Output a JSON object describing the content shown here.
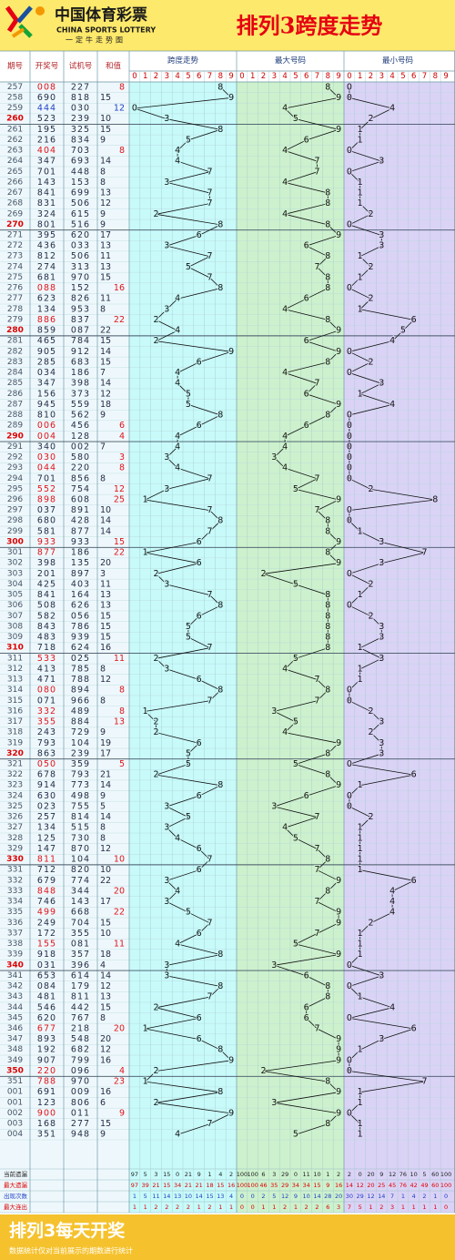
{
  "header": {
    "logo": "中国体育彩票",
    "logo_en": "CHINA SPORTS LOTTERY",
    "logo_sub": "一定牛走势图",
    "title": "排列3跨度走势"
  },
  "columns": [
    "期号",
    "开奖号",
    "试机号",
    "和值"
  ],
  "sections": [
    "跨度走势",
    "最大号码",
    "最小号码"
  ],
  "digits": [
    0,
    1,
    2,
    3,
    4,
    5,
    6,
    7,
    8,
    9
  ],
  "rows": [
    [
      "257",
      "008",
      "227",
      8,
      8,
      8,
      0
    ],
    [
      "258",
      "690",
      "818",
      15,
      9,
      9,
      0
    ],
    [
      "259",
      "444",
      "030",
      12,
      0,
      4,
      4
    ],
    [
      "260",
      "523",
      "239",
      10,
      3,
      5,
      2
    ],
    [
      "261",
      "195",
      "325",
      15,
      8,
      9,
      1
    ],
    [
      "262",
      "216",
      "834",
      9,
      5,
      6,
      1
    ],
    [
      "263",
      "404",
      "703",
      8,
      4,
      4,
      0
    ],
    [
      "264",
      "347",
      "693",
      14,
      4,
      7,
      3
    ],
    [
      "265",
      "701",
      "448",
      8,
      7,
      7,
      0
    ],
    [
      "266",
      "143",
      "153",
      8,
      3,
      4,
      1
    ],
    [
      "267",
      "841",
      "699",
      13,
      7,
      8,
      1
    ],
    [
      "268",
      "831",
      "506",
      12,
      7,
      8,
      1
    ],
    [
      "269",
      "324",
      "615",
      9,
      2,
      4,
      2
    ],
    [
      "270",
      "801",
      "516",
      9,
      8,
      8,
      0
    ],
    [
      "271",
      "395",
      "620",
      17,
      6,
      9,
      3
    ],
    [
      "272",
      "436",
      "033",
      13,
      3,
      6,
      3
    ],
    [
      "273",
      "812",
      "506",
      11,
      7,
      8,
      1
    ],
    [
      "274",
      "274",
      "313",
      13,
      5,
      7,
      2
    ],
    [
      "275",
      "681",
      "970",
      15,
      7,
      8,
      1
    ],
    [
      "276",
      "088",
      "152",
      16,
      8,
      8,
      0
    ],
    [
      "277",
      "623",
      "826",
      11,
      4,
      6,
      2
    ],
    [
      "278",
      "134",
      "953",
      8,
      3,
      4,
      1
    ],
    [
      "279",
      "886",
      "837",
      22,
      2,
      8,
      6
    ],
    [
      "280",
      "859",
      "087",
      22,
      4,
      9,
      5
    ],
    [
      "281",
      "465",
      "784",
      15,
      2,
      6,
      4
    ],
    [
      "282",
      "905",
      "912",
      14,
      9,
      9,
      0
    ],
    [
      "283",
      "285",
      "683",
      15,
      6,
      8,
      2
    ],
    [
      "284",
      "034",
      "186",
      7,
      4,
      4,
      0
    ],
    [
      "285",
      "347",
      "398",
      14,
      4,
      7,
      3
    ],
    [
      "286",
      "156",
      "373",
      12,
      5,
      6,
      1
    ],
    [
      "287",
      "945",
      "559",
      18,
      5,
      9,
      4
    ],
    [
      "288",
      "810",
      "562",
      9,
      8,
      8,
      0
    ],
    [
      "289",
      "006",
      "456",
      6,
      6,
      6,
      0
    ],
    [
      "290",
      "004",
      "128",
      4,
      4,
      4,
      0
    ],
    [
      "291",
      "340",
      "002",
      7,
      4,
      4,
      0
    ],
    [
      "292",
      "030",
      "580",
      3,
      3,
      3,
      0
    ],
    [
      "293",
      "044",
      "220",
      8,
      4,
      4,
      0
    ],
    [
      "294",
      "701",
      "856",
      8,
      7,
      7,
      0
    ],
    [
      "295",
      "552",
      "754",
      12,
      3,
      5,
      2
    ],
    [
      "296",
      "898",
      "608",
      25,
      1,
      9,
      8
    ],
    [
      "297",
      "037",
      "891",
      10,
      7,
      7,
      0
    ],
    [
      "298",
      "680",
      "428",
      14,
      8,
      8,
      0
    ],
    [
      "299",
      "581",
      "877",
      14,
      7,
      8,
      1
    ],
    [
      "300",
      "933",
      "933",
      15,
      6,
      9,
      3
    ],
    [
      "301",
      "877",
      "186",
      22,
      1,
      8,
      7
    ],
    [
      "302",
      "398",
      "135",
      20,
      6,
      9,
      3
    ],
    [
      "303",
      "201",
      "897",
      3,
      2,
      2,
      0
    ],
    [
      "304",
      "425",
      "403",
      11,
      3,
      5,
      2
    ],
    [
      "305",
      "841",
      "164",
      13,
      7,
      8,
      1
    ],
    [
      "306",
      "508",
      "626",
      13,
      8,
      8,
      0
    ],
    [
      "307",
      "582",
      "056",
      15,
      6,
      8,
      2
    ],
    [
      "308",
      "843",
      "786",
      15,
      5,
      8,
      3
    ],
    [
      "309",
      "483",
      "939",
      15,
      5,
      8,
      3
    ],
    [
      "310",
      "718",
      "624",
      16,
      7,
      8,
      1
    ],
    [
      "311",
      "533",
      "025",
      11,
      2,
      5,
      3
    ],
    [
      "312",
      "413",
      "785",
      8,
      3,
      4,
      1
    ],
    [
      "313",
      "471",
      "788",
      12,
      6,
      7,
      1
    ],
    [
      "314",
      "080",
      "894",
      8,
      8,
      8,
      0
    ],
    [
      "315",
      "071",
      "966",
      8,
      7,
      7,
      0
    ],
    [
      "316",
      "332",
      "489",
      8,
      1,
      3,
      2
    ],
    [
      "317",
      "355",
      "884",
      13,
      2,
      5,
      3
    ],
    [
      "318",
      "243",
      "729",
      9,
      2,
      4,
      2
    ],
    [
      "319",
      "793",
      "104",
      19,
      6,
      9,
      3
    ],
    [
      "320",
      "863",
      "239",
      17,
      5,
      8,
      3
    ],
    [
      "321",
      "050",
      "359",
      5,
      5,
      5,
      0
    ],
    [
      "322",
      "678",
      "793",
      21,
      2,
      8,
      6
    ],
    [
      "323",
      "914",
      "773",
      14,
      8,
      9,
      1
    ],
    [
      "324",
      "630",
      "498",
      9,
      6,
      6,
      0
    ],
    [
      "325",
      "023",
      "755",
      5,
      3,
      3,
      0
    ],
    [
      "326",
      "257",
      "814",
      14,
      5,
      7,
      2
    ],
    [
      "327",
      "134",
      "515",
      8,
      3,
      4,
      1
    ],
    [
      "328",
      "125",
      "730",
      8,
      4,
      5,
      1
    ],
    [
      "329",
      "147",
      "870",
      12,
      6,
      7,
      1
    ],
    [
      "330",
      "811",
      "104",
      10,
      7,
      8,
      1
    ],
    [
      "331",
      "712",
      "820",
      10,
      6,
      7,
      1
    ],
    [
      "332",
      "679",
      "774",
      22,
      3,
      9,
      6
    ],
    [
      "333",
      "848",
      "344",
      20,
      4,
      8,
      4
    ],
    [
      "334",
      "746",
      "143",
      17,
      3,
      7,
      4
    ],
    [
      "335",
      "499",
      "668",
      22,
      5,
      9,
      4
    ],
    [
      "336",
      "249",
      "704",
      15,
      7,
      9,
      2
    ],
    [
      "337",
      "172",
      "355",
      10,
      6,
      7,
      1
    ],
    [
      "338",
      "155",
      "081",
      11,
      4,
      5,
      1
    ],
    [
      "339",
      "918",
      "357",
      18,
      8,
      9,
      1
    ],
    [
      "340",
      "031",
      "396",
      4,
      3,
      3,
      0
    ],
    [
      "341",
      "653",
      "614",
      14,
      3,
      6,
      3
    ],
    [
      "342",
      "084",
      "179",
      12,
      8,
      8,
      0
    ],
    [
      "343",
      "481",
      "811",
      13,
      7,
      8,
      1
    ],
    [
      "344",
      "546",
      "442",
      15,
      2,
      6,
      4
    ],
    [
      "345",
      "620",
      "767",
      8,
      6,
      6,
      0
    ],
    [
      "346",
      "677",
      "218",
      20,
      1,
      7,
      6
    ],
    [
      "347",
      "893",
      "548",
      20,
      6,
      9,
      3
    ],
    [
      "348",
      "192",
      "682",
      12,
      8,
      9,
      1
    ],
    [
      "349",
      "907",
      "799",
      16,
      9,
      9,
      0
    ],
    [
      "350",
      "220",
      "096",
      4,
      2,
      2,
      0
    ],
    [
      "351",
      "788",
      "970",
      23,
      1,
      8,
      7
    ],
    [
      "001",
      "691",
      "009",
      16,
      8,
      9,
      1
    ],
    [
      "001",
      "123",
      "806",
      6,
      2,
      3,
      1
    ],
    [
      "002",
      "900",
      "011",
      9,
      9,
      9,
      0
    ],
    [
      "003",
      "168",
      "277",
      15,
      7,
      8,
      1
    ],
    [
      "004",
      "351",
      "948",
      9,
      4,
      5,
      1
    ]
  ],
  "stats": {
    "labels": [
      "当前遗漏",
      "最大遗漏",
      "出现次数",
      "最大连出"
    ],
    "values": [
      [
        97,
        5,
        3,
        15,
        0,
        21,
        9,
        1,
        4,
        2,
        100,
        100,
        6,
        3,
        29,
        0,
        11,
        10,
        1,
        2,
        2,
        0,
        20,
        9,
        12,
        76,
        10,
        5,
        60,
        100
      ],
      [
        97,
        39,
        21,
        15,
        34,
        21,
        21,
        18,
        15,
        16,
        100,
        100,
        46,
        35,
        29,
        34,
        34,
        15,
        9,
        16,
        14,
        12,
        20,
        25,
        45,
        76,
        42,
        49,
        60,
        100
      ],
      [
        1,
        5,
        11,
        14,
        13,
        10,
        14,
        15,
        13,
        4,
        0,
        0,
        2,
        5,
        12,
        9,
        10,
        14,
        28,
        20,
        30,
        29,
        12,
        14,
        7,
        1,
        4,
        2,
        1,
        0
      ],
      [
        1,
        1,
        2,
        2,
        2,
        2,
        1,
        2,
        1,
        1,
        0,
        0,
        1,
        1,
        2,
        1,
        2,
        2,
        6,
        3,
        7,
        5,
        1,
        2,
        3,
        1,
        1,
        1,
        1,
        0
      ]
    ]
  },
  "footer": {
    "title": "排列3每天开奖",
    "note": "数据统计仅对当前展示的期数进行统计"
  }
}
